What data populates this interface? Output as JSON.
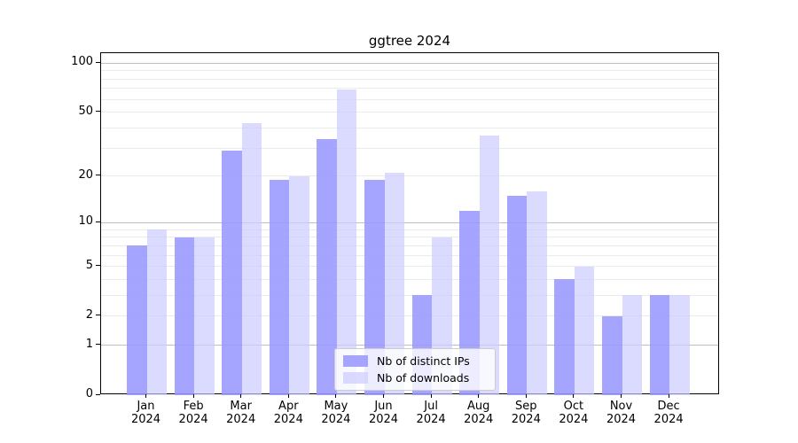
{
  "title": "ggtree 2024",
  "legend": {
    "items": [
      {
        "label": "Nb of distinct IPs"
      },
      {
        "label": "Nb of downloads"
      }
    ]
  },
  "chart_data": {
    "type": "bar",
    "title": "ggtree 2024",
    "categories": [
      "Jan",
      "Feb",
      "Mar",
      "Apr",
      "May",
      "Jun",
      "Jul",
      "Aug",
      "Sep",
      "Oct",
      "Nov",
      "Dec"
    ],
    "year_suffix": "2024",
    "series": [
      {
        "name": "Nb of distinct IPs",
        "color": "#9999ff",
        "values": [
          7,
          8,
          29,
          19,
          34,
          19,
          3,
          12,
          15,
          4,
          2,
          3
        ]
      },
      {
        "name": "Nb of downloads",
        "color": "#ccccff",
        "values": [
          9,
          8,
          43,
          20,
          69,
          21,
          8,
          36,
          16,
          5,
          3,
          3
        ]
      }
    ],
    "yscale": "log1p",
    "ylim": [
      0,
      115
    ],
    "ytick_labels": [
      "100",
      "50",
      "20",
      "10",
      "5",
      "2",
      "1",
      "0"
    ],
    "ytick_values": [
      100,
      50,
      20,
      10,
      5,
      2,
      1,
      0
    ],
    "major_grid_values": [
      1,
      10,
      100
    ],
    "minor_grid_values": [
      2,
      3,
      4,
      5,
      6,
      7,
      8,
      9,
      20,
      30,
      40,
      50,
      60,
      70,
      80,
      90
    ],
    "grid": true,
    "legend_position": "lower center",
    "colors": {
      "distinct_ips": "#9999ff",
      "downloads": "#ccccff",
      "grid_major": "#bfbfbf",
      "grid_minor": "#ebebeb",
      "spine": "#000000",
      "text": "#000000"
    }
  }
}
